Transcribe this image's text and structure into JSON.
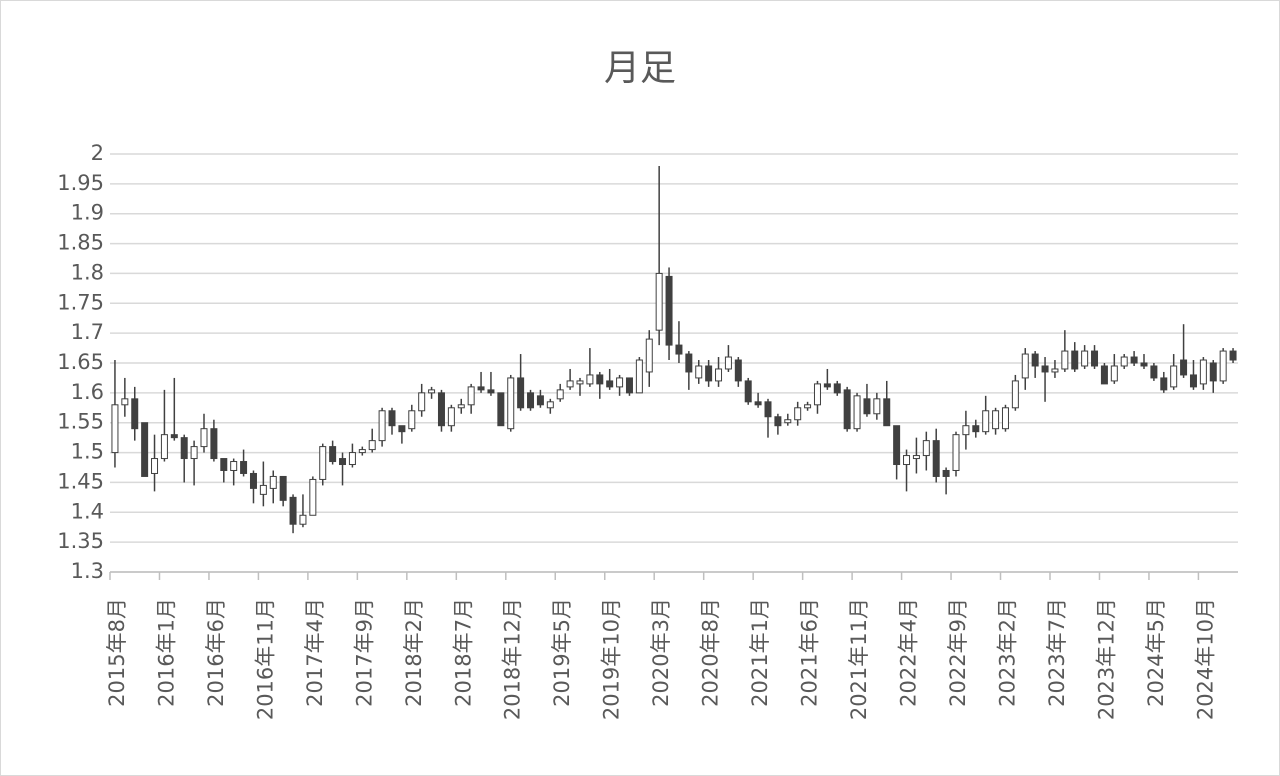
{
  "chart_data": {
    "type": "candlestick",
    "title": "月足",
    "categories": [
      "2015年8月",
      null,
      null,
      null,
      null,
      "2016年1月",
      null,
      null,
      null,
      null,
      "2016年6月",
      null,
      null,
      null,
      null,
      "2016年11月",
      null,
      null,
      null,
      null,
      "2017年4月",
      null,
      null,
      null,
      null,
      "2017年9月",
      null,
      null,
      null,
      null,
      "2018年2月",
      null,
      null,
      null,
      null,
      "2018年7月",
      null,
      null,
      null,
      null,
      "2018年12月",
      null,
      null,
      null,
      null,
      "2019年5月",
      null,
      null,
      null,
      null,
      "2019年10月",
      null,
      null,
      null,
      null,
      "2020年3月",
      null,
      null,
      null,
      null,
      "2020年8月",
      null,
      null,
      null,
      null,
      "2021年1月",
      null,
      null,
      null,
      null,
      "2021年6月",
      null,
      null,
      null,
      null,
      "2021年11月",
      null,
      null,
      null,
      null,
      "2022年4月",
      null,
      null,
      null,
      null,
      "2022年9月",
      null,
      null,
      null,
      null,
      "2023年2月",
      null,
      null,
      null,
      null,
      "2023年7月",
      null,
      null,
      null,
      null,
      "2023年12月",
      null,
      null,
      null,
      null,
      "2024年5月",
      null,
      null,
      null,
      null,
      "2024年10月",
      null,
      null,
      null
    ],
    "open": [
      1.5,
      1.58,
      1.59,
      1.55,
      1.465,
      1.49,
      1.53,
      1.525,
      1.49,
      1.51,
      1.54,
      1.49,
      1.47,
      1.485,
      1.465,
      1.43,
      1.44,
      1.46,
      1.425,
      1.38,
      1.395,
      1.455,
      1.51,
      1.49,
      1.48,
      1.5,
      1.505,
      1.52,
      1.57,
      1.545,
      1.54,
      1.57,
      1.6,
      1.6,
      1.545,
      1.575,
      1.58,
      1.61,
      1.605,
      1.6,
      1.54,
      1.625,
      1.6,
      1.595,
      1.575,
      1.59,
      1.61,
      1.615,
      1.615,
      1.63,
      1.62,
      1.61,
      1.625,
      1.6,
      1.635,
      1.705,
      1.795,
      1.68,
      1.665,
      1.625,
      1.645,
      1.62,
      1.64,
      1.655,
      1.62,
      1.585,
      1.585,
      1.56,
      1.55,
      1.555,
      1.575,
      1.58,
      1.615,
      1.615,
      1.605,
      1.54,
      1.59,
      1.565,
      1.59,
      1.545,
      1.48,
      1.49,
      1.495,
      1.52,
      1.47,
      1.47,
      1.53,
      1.545,
      1.535,
      1.54,
      1.54,
      1.575,
      1.625,
      1.665,
      1.645,
      1.635,
      1.64,
      1.67,
      1.645,
      1.67,
      1.645,
      1.62,
      1.645,
      1.66,
      1.65,
      1.645,
      1.625,
      1.61,
      1.655,
      1.63,
      1.615,
      1.65,
      1.62,
      1.67
    ],
    "high": [
      1.655,
      1.625,
      1.61,
      1.55,
      1.53,
      1.605,
      1.625,
      1.53,
      1.52,
      1.565,
      1.555,
      1.49,
      1.49,
      1.505,
      1.47,
      1.485,
      1.47,
      1.46,
      1.43,
      1.43,
      1.46,
      1.515,
      1.52,
      1.5,
      1.515,
      1.51,
      1.54,
      1.575,
      1.575,
      1.545,
      1.58,
      1.615,
      1.61,
      1.605,
      1.58,
      1.59,
      1.615,
      1.635,
      1.635,
      1.6,
      1.63,
      1.665,
      1.605,
      1.605,
      1.59,
      1.615,
      1.64,
      1.625,
      1.675,
      1.635,
      1.64,
      1.63,
      1.625,
      1.66,
      1.705,
      1.98,
      1.81,
      1.72,
      1.67,
      1.655,
      1.655,
      1.66,
      1.68,
      1.66,
      1.625,
      1.6,
      1.59,
      1.565,
      1.565,
      1.585,
      1.585,
      1.62,
      1.64,
      1.62,
      1.61,
      1.6,
      1.615,
      1.6,
      1.62,
      1.545,
      1.505,
      1.525,
      1.535,
      1.54,
      1.475,
      1.535,
      1.57,
      1.555,
      1.595,
      1.575,
      1.58,
      1.63,
      1.675,
      1.67,
      1.66,
      1.655,
      1.705,
      1.685,
      1.68,
      1.68,
      1.65,
      1.665,
      1.665,
      1.67,
      1.665,
      1.65,
      1.635,
      1.665,
      1.715,
      1.655,
      1.66,
      1.655,
      1.675,
      1.675
    ],
    "low": [
      1.475,
      1.56,
      1.52,
      1.46,
      1.435,
      1.485,
      1.52,
      1.45,
      1.445,
      1.5,
      1.485,
      1.45,
      1.445,
      1.46,
      1.415,
      1.41,
      1.415,
      1.41,
      1.365,
      1.375,
      1.395,
      1.445,
      1.48,
      1.445,
      1.475,
      1.495,
      1.5,
      1.51,
      1.53,
      1.515,
      1.535,
      1.56,
      1.59,
      1.535,
      1.535,
      1.565,
      1.565,
      1.6,
      1.595,
      1.545,
      1.535,
      1.57,
      1.57,
      1.575,
      1.565,
      1.585,
      1.605,
      1.595,
      1.61,
      1.59,
      1.605,
      1.595,
      1.595,
      1.6,
      1.61,
      1.68,
      1.655,
      1.65,
      1.605,
      1.615,
      1.61,
      1.61,
      1.635,
      1.61,
      1.58,
      1.575,
      1.525,
      1.53,
      1.545,
      1.545,
      1.57,
      1.565,
      1.605,
      1.595,
      1.535,
      1.535,
      1.56,
      1.555,
      1.545,
      1.455,
      1.435,
      1.465,
      1.47,
      1.45,
      1.43,
      1.46,
      1.505,
      1.525,
      1.53,
      1.53,
      1.535,
      1.57,
      1.605,
      1.625,
      1.585,
      1.625,
      1.635,
      1.635,
      1.64,
      1.64,
      1.615,
      1.615,
      1.64,
      1.645,
      1.64,
      1.62,
      1.6,
      1.605,
      1.625,
      1.605,
      1.605,
      1.6,
      1.615,
      1.65
    ],
    "close": [
      1.58,
      1.59,
      1.54,
      1.46,
      1.49,
      1.53,
      1.525,
      1.49,
      1.51,
      1.54,
      1.49,
      1.47,
      1.485,
      1.465,
      1.44,
      1.445,
      1.46,
      1.42,
      1.38,
      1.395,
      1.455,
      1.51,
      1.485,
      1.48,
      1.5,
      1.505,
      1.52,
      1.57,
      1.545,
      1.535,
      1.57,
      1.6,
      1.605,
      1.545,
      1.575,
      1.58,
      1.61,
      1.605,
      1.6,
      1.545,
      1.625,
      1.575,
      1.575,
      1.58,
      1.585,
      1.605,
      1.62,
      1.62,
      1.63,
      1.615,
      1.61,
      1.625,
      1.6,
      1.655,
      1.69,
      1.8,
      1.68,
      1.665,
      1.635,
      1.645,
      1.62,
      1.64,
      1.66,
      1.62,
      1.585,
      1.58,
      1.56,
      1.545,
      1.555,
      1.575,
      1.58,
      1.615,
      1.61,
      1.6,
      1.54,
      1.595,
      1.565,
      1.59,
      1.545,
      1.48,
      1.495,
      1.495,
      1.52,
      1.46,
      1.46,
      1.53,
      1.545,
      1.535,
      1.57,
      1.57,
      1.575,
      1.62,
      1.665,
      1.645,
      1.635,
      1.64,
      1.67,
      1.64,
      1.67,
      1.645,
      1.615,
      1.645,
      1.66,
      1.65,
      1.645,
      1.625,
      1.605,
      1.645,
      1.63,
      1.61,
      1.655,
      1.62,
      1.67,
      1.655
    ],
    "up_color": "#ffffff",
    "down_color": "#404040",
    "ylim": [
      1.3,
      2
    ],
    "yticks": [
      1.3,
      1.35,
      1.4,
      1.45,
      1.5,
      1.55,
      1.6,
      1.65,
      1.7,
      1.75,
      1.8,
      1.85,
      1.9,
      1.95,
      2
    ],
    "grid": true
  }
}
